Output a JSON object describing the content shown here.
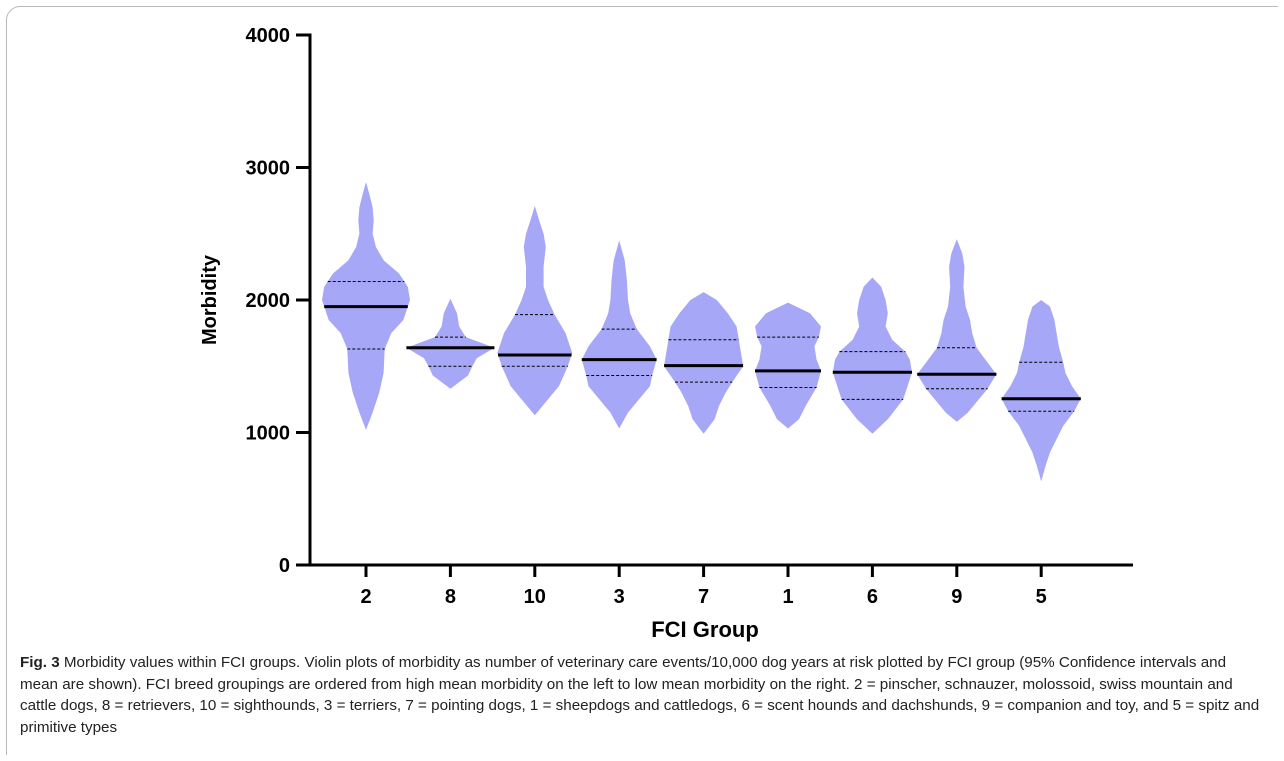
{
  "chart_data": {
    "type": "violin",
    "xlabel": "FCI Group",
    "ylabel": "Morbidity",
    "ylim": [
      0,
      4000
    ],
    "yticks": [
      0,
      1000,
      2000,
      3000,
      4000
    ],
    "categories": [
      "2",
      "8",
      "10",
      "3",
      "7",
      "1",
      "6",
      "9",
      "5"
    ],
    "fill_color": "#a7a7f8",
    "violins": [
      {
        "group": "2",
        "min": 1020,
        "max": 2890,
        "mean": 1950,
        "ci_low": 1630,
        "ci_high": 2140,
        "profile": [
          [
            1020,
            0
          ],
          [
            1150,
            6
          ],
          [
            1300,
            12
          ],
          [
            1450,
            16
          ],
          [
            1630,
            17
          ],
          [
            1750,
            23
          ],
          [
            1850,
            34
          ],
          [
            2000,
            40
          ],
          [
            2100,
            38
          ],
          [
            2200,
            30
          ],
          [
            2300,
            16
          ],
          [
            2400,
            9
          ],
          [
            2500,
            6
          ],
          [
            2600,
            7
          ],
          [
            2700,
            6
          ],
          [
            2800,
            3
          ],
          [
            2890,
            0
          ]
        ]
      },
      {
        "group": "8",
        "min": 1330,
        "max": 2010,
        "mean": 1640,
        "ci_low": 1500,
        "ci_high": 1720,
        "profile": [
          [
            1330,
            0
          ],
          [
            1380,
            8
          ],
          [
            1430,
            16
          ],
          [
            1500,
            20
          ],
          [
            1560,
            24
          ],
          [
            1640,
            40
          ],
          [
            1720,
            14
          ],
          [
            1800,
            8
          ],
          [
            1900,
            6
          ],
          [
            2010,
            0
          ]
        ]
      },
      {
        "group": "10",
        "min": 1130,
        "max": 2710,
        "mean": 1585,
        "ci_low": 1500,
        "ci_high": 1890,
        "profile": [
          [
            1130,
            0
          ],
          [
            1250,
            12
          ],
          [
            1350,
            22
          ],
          [
            1500,
            30
          ],
          [
            1600,
            34
          ],
          [
            1750,
            28
          ],
          [
            1890,
            18
          ],
          [
            2000,
            12
          ],
          [
            2100,
            8
          ],
          [
            2250,
            8
          ],
          [
            2400,
            10
          ],
          [
            2500,
            8
          ],
          [
            2600,
            4
          ],
          [
            2710,
            0
          ]
        ]
      },
      {
        "group": "3",
        "min": 1030,
        "max": 2450,
        "mean": 1550,
        "ci_low": 1430,
        "ci_high": 1780,
        "profile": [
          [
            1030,
            0
          ],
          [
            1150,
            8
          ],
          [
            1250,
            18
          ],
          [
            1350,
            28
          ],
          [
            1430,
            30
          ],
          [
            1550,
            34
          ],
          [
            1650,
            28
          ],
          [
            1780,
            16
          ],
          [
            1900,
            10
          ],
          [
            2000,
            8
          ],
          [
            2150,
            7
          ],
          [
            2300,
            5
          ],
          [
            2450,
            0
          ]
        ]
      },
      {
        "group": "7",
        "min": 990,
        "max": 2060,
        "mean": 1505,
        "ci_low": 1380,
        "ci_high": 1700,
        "profile": [
          [
            990,
            0
          ],
          [
            1100,
            10
          ],
          [
            1200,
            14
          ],
          [
            1300,
            20
          ],
          [
            1380,
            26
          ],
          [
            1500,
            36
          ],
          [
            1600,
            34
          ],
          [
            1700,
            32
          ],
          [
            1800,
            30
          ],
          [
            1900,
            22
          ],
          [
            2000,
            12
          ],
          [
            2060,
            0
          ]
        ]
      },
      {
        "group": "1",
        "min": 1030,
        "max": 1980,
        "mean": 1465,
        "ci_low": 1340,
        "ci_high": 1720,
        "profile": [
          [
            1030,
            0
          ],
          [
            1100,
            10
          ],
          [
            1200,
            16
          ],
          [
            1340,
            26
          ],
          [
            1465,
            30
          ],
          [
            1550,
            26
          ],
          [
            1650,
            24
          ],
          [
            1720,
            28
          ],
          [
            1800,
            30
          ],
          [
            1900,
            20
          ],
          [
            1980,
            0
          ]
        ]
      },
      {
        "group": "6",
        "min": 990,
        "max": 2170,
        "mean": 1455,
        "ci_low": 1250,
        "ci_high": 1610,
        "profile": [
          [
            990,
            0
          ],
          [
            1100,
            14
          ],
          [
            1250,
            28
          ],
          [
            1350,
            32
          ],
          [
            1455,
            36
          ],
          [
            1550,
            34
          ],
          [
            1610,
            30
          ],
          [
            1700,
            18
          ],
          [
            1800,
            12
          ],
          [
            1900,
            14
          ],
          [
            2000,
            12
          ],
          [
            2100,
            8
          ],
          [
            2170,
            0
          ]
        ]
      },
      {
        "group": "9",
        "min": 1080,
        "max": 2460,
        "mean": 1440,
        "ci_low": 1330,
        "ci_high": 1640,
        "profile": [
          [
            1080,
            0
          ],
          [
            1150,
            10
          ],
          [
            1250,
            20
          ],
          [
            1330,
            28
          ],
          [
            1440,
            36
          ],
          [
            1550,
            26
          ],
          [
            1640,
            18
          ],
          [
            1750,
            14
          ],
          [
            1850,
            12
          ],
          [
            1950,
            8
          ],
          [
            2100,
            6
          ],
          [
            2250,
            7
          ],
          [
            2350,
            5
          ],
          [
            2460,
            0
          ]
        ]
      },
      {
        "group": "5",
        "min": 630,
        "max": 2000,
        "mean": 1255,
        "ci_low": 1160,
        "ci_high": 1530,
        "profile": [
          [
            630,
            0
          ],
          [
            750,
            4
          ],
          [
            850,
            8
          ],
          [
            950,
            14
          ],
          [
            1050,
            20
          ],
          [
            1160,
            30
          ],
          [
            1255,
            36
          ],
          [
            1350,
            28
          ],
          [
            1450,
            22
          ],
          [
            1530,
            20
          ],
          [
            1650,
            16
          ],
          [
            1750,
            14
          ],
          [
            1850,
            12
          ],
          [
            1950,
            8
          ],
          [
            2000,
            0
          ]
        ]
      }
    ]
  },
  "caption": {
    "label": "Fig. 3",
    "text": "Morbidity values within FCI groups. Violin plots of morbidity as number of veterinary care events/10,000 dog years at risk plotted by FCI group (95% Confidence intervals and mean are shown). FCI breed groupings are ordered from high mean morbidity on the left to low mean morbidity on the right. 2 = pinscher, schnauzer, molossoid, swiss mountain and cattle dogs, 8 = retrievers, 10 = sighthounds, 3 = terriers, 7 = pointing dogs, 1 = sheepdogs and cattledogs, 6 = scent hounds and dachshunds, 9 = companion and toy, and 5 = spitz and primitive types"
  }
}
